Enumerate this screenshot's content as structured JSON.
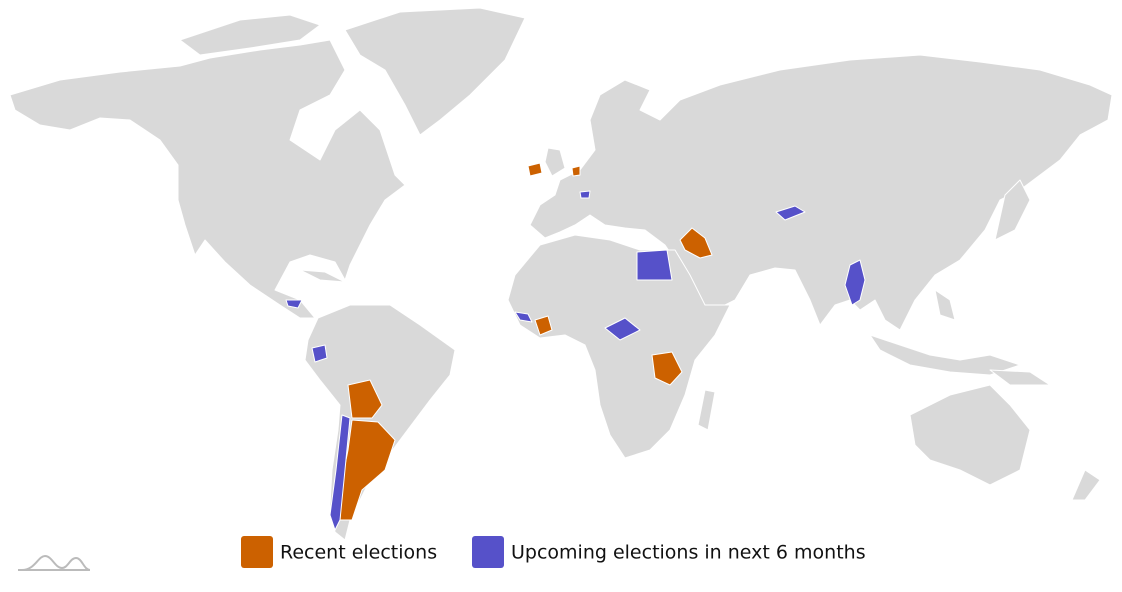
{
  "legend": {
    "items": [
      {
        "label": "Recent elections",
        "color": "#cc6100"
      },
      {
        "label": "Upcoming elections in next 6 months",
        "color": "#5651c9"
      }
    ]
  }
}
